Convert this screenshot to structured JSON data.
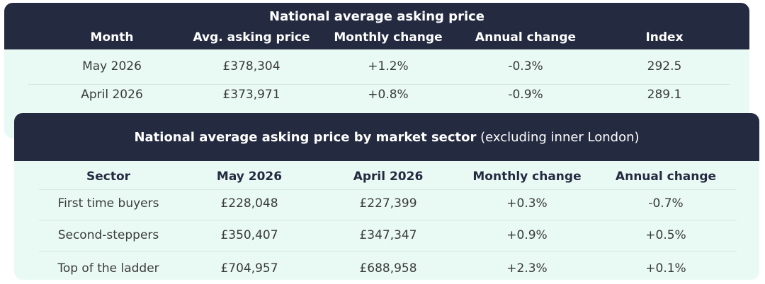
{
  "tables": [
    {
      "title": "National average asking price",
      "columns": [
        "Month",
        "Avg. asking price",
        "Monthly change",
        "Annual change",
        "Index"
      ],
      "rows": [
        [
          "May 2026",
          "£378,304",
          "+1.2%",
          "-0.3%",
          "292.5"
        ],
        [
          "April 2026",
          "£373,971",
          "+0.8%",
          "-0.9%",
          "289.1"
        ]
      ]
    },
    {
      "title": "National average asking price by market sector",
      "title_note": "(excluding inner London)",
      "columns": [
        "Sector",
        "May 2026",
        "April 2026",
        "Monthly change",
        "Annual change"
      ],
      "rows": [
        [
          "First time buyers",
          "£228,048",
          "£227,399",
          "+0.3%",
          "-0.7%"
        ],
        [
          "Second-steppers",
          "£350,407",
          "£347,347",
          "+0.9%",
          "+0.5%"
        ],
        [
          "Top of the ladder",
          "£704,957",
          "£688,958",
          "+2.3%",
          "+0.1%"
        ]
      ]
    }
  ]
}
